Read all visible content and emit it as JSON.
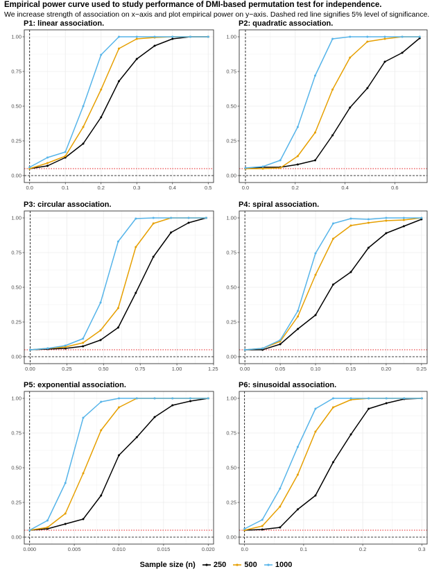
{
  "header": {
    "title": "Empirical power curve used to study performance of DMI-based permutation test for independence.",
    "subtitle": "We increase strength of association on x−axis and plot empirical power on y−axis. Dashed red line signifies 5% level of significance."
  },
  "legend": {
    "title": "Sample size (n)",
    "placement": "bottom",
    "items": [
      {
        "label": "250",
        "color": "#000000"
      },
      {
        "label": "500",
        "color": "#E69F00"
      },
      {
        "label": "1000",
        "color": "#56B4E9"
      }
    ]
  },
  "colors": {
    "significance_line": "#e41a1c",
    "zero_line": "#000000",
    "panel_border": "#333333",
    "grid": "#ebebeb"
  },
  "chart_data": [
    {
      "type": "line",
      "title": "P1: linear association.",
      "xlim": [
        -0.015,
        0.515
      ],
      "ylim": [
        -0.05,
        1.05
      ],
      "x_ticks": [
        0,
        0.1,
        0.2,
        0.3,
        0.4,
        0.5
      ],
      "x_tick_labels": [
        "0.0",
        "0.1",
        "0.2",
        "0.3",
        "0.4",
        "0.5"
      ],
      "y_ticks": [
        0,
        0.25,
        0.5,
        0.75,
        1
      ],
      "y_tick_labels": [
        "0.00",
        "0.25",
        "0.50",
        "0.75",
        "1.00"
      ],
      "reference_lines": {
        "vertical_x": 0,
        "horizontal_y": 0,
        "significance_y": 0.05
      },
      "x": [
        0,
        0.05,
        0.1,
        0.15,
        0.2,
        0.25,
        0.3,
        0.35,
        0.4,
        0.45,
        0.5
      ],
      "series": [
        {
          "name": "250",
          "values": [
            0.05,
            0.07,
            0.13,
            0.23,
            0.42,
            0.68,
            0.84,
            0.935,
            0.985,
            1.0,
            1.0
          ]
        },
        {
          "name": "500",
          "values": [
            0.05,
            0.09,
            0.14,
            0.35,
            0.62,
            0.915,
            0.985,
            0.995,
            1.0,
            1.0,
            1.0
          ]
        },
        {
          "name": "1000",
          "values": [
            0.06,
            0.13,
            0.17,
            0.5,
            0.87,
            1.0,
            1.0,
            1.0,
            1.0,
            1.0,
            1.0
          ]
        }
      ]
    },
    {
      "type": "line",
      "title": "P2: quadratic association.",
      "xlim": [
        -0.025,
        0.73
      ],
      "ylim": [
        -0.05,
        1.05
      ],
      "x_ticks": [
        0,
        0.2,
        0.4,
        0.6
      ],
      "x_tick_labels": [
        "0.0",
        "0.2",
        "0.4",
        "0.6"
      ],
      "y_ticks": [
        0,
        0.25,
        0.5,
        0.75,
        1
      ],
      "y_tick_labels": [
        "0.00",
        "0.25",
        "0.50",
        "0.75",
        "1.00"
      ],
      "reference_lines": {
        "vertical_x": 0,
        "horizontal_y": 0,
        "significance_y": 0.05
      },
      "x": [
        0,
        0.07,
        0.14,
        0.21,
        0.28,
        0.35,
        0.42,
        0.49,
        0.56,
        0.63,
        0.7
      ],
      "series": [
        {
          "name": "250",
          "values": [
            0.05,
            0.06,
            0.06,
            0.08,
            0.11,
            0.29,
            0.49,
            0.63,
            0.82,
            0.885,
            0.99
          ]
        },
        {
          "name": "500",
          "values": [
            0.05,
            0.05,
            0.055,
            0.14,
            0.31,
            0.62,
            0.85,
            0.965,
            0.985,
            1.0,
            1.0
          ]
        },
        {
          "name": "1000",
          "values": [
            0.055,
            0.065,
            0.11,
            0.35,
            0.72,
            0.985,
            1.0,
            1.0,
            1.0,
            1.0,
            1.0
          ]
        }
      ]
    },
    {
      "type": "line",
      "title": "P3: circular association.",
      "xlim": [
        -0.04,
        1.25
      ],
      "ylim": [
        -0.05,
        1.05
      ],
      "x_ticks": [
        0,
        0.25,
        0.5,
        0.75,
        1,
        1.25
      ],
      "x_tick_labels": [
        "0.00",
        "0.25",
        "0.50",
        "0.75",
        "1.00",
        "1.25"
      ],
      "y_ticks": [
        0,
        0.25,
        0.5,
        0.75,
        1
      ],
      "y_tick_labels": [
        "0.00",
        "0.25",
        "0.50",
        "0.75",
        "1.00"
      ],
      "reference_lines": {
        "vertical_x": 0,
        "horizontal_y": 0,
        "significance_y": 0.05
      },
      "x": [
        0,
        0.12,
        0.24,
        0.36,
        0.48,
        0.6,
        0.72,
        0.84,
        0.96,
        1.08,
        1.2
      ],
      "series": [
        {
          "name": "250",
          "values": [
            0.05,
            0.055,
            0.06,
            0.075,
            0.12,
            0.21,
            0.46,
            0.72,
            0.895,
            0.965,
            1.0
          ]
        },
        {
          "name": "500",
          "values": [
            0.05,
            0.06,
            0.07,
            0.1,
            0.19,
            0.35,
            0.79,
            0.96,
            1.0,
            1.0,
            1.0
          ]
        },
        {
          "name": "1000",
          "values": [
            0.05,
            0.06,
            0.08,
            0.13,
            0.39,
            0.83,
            0.995,
            1.0,
            1.0,
            1.0,
            1.0
          ]
        }
      ]
    },
    {
      "type": "line",
      "title": "P4: spiral association.",
      "xlim": [
        -0.008,
        0.258
      ],
      "ylim": [
        -0.05,
        1.05
      ],
      "x_ticks": [
        0,
        0.05,
        0.1,
        0.15,
        0.2,
        0.25
      ],
      "x_tick_labels": [
        "0.00",
        "0.05",
        "0.10",
        "0.15",
        "0.20",
        "0.25"
      ],
      "y_ticks": [
        0,
        0.25,
        0.5,
        0.75,
        1
      ],
      "y_tick_labels": [
        "0.00",
        "0.25",
        "0.50",
        "0.75",
        "1.00"
      ],
      "reference_lines": {
        "vertical_x": 0,
        "horizontal_y": 0,
        "significance_y": 0.05
      },
      "x": [
        0,
        0.025,
        0.05,
        0.075,
        0.1,
        0.125,
        0.15,
        0.175,
        0.2,
        0.225,
        0.25
      ],
      "series": [
        {
          "name": "250",
          "values": [
            0.05,
            0.05,
            0.09,
            0.2,
            0.3,
            0.52,
            0.61,
            0.785,
            0.89,
            0.94,
            0.99
          ]
        },
        {
          "name": "500",
          "values": [
            0.05,
            0.06,
            0.11,
            0.29,
            0.59,
            0.85,
            0.945,
            0.965,
            0.98,
            0.985,
            1.0
          ]
        },
        {
          "name": "1000",
          "values": [
            0.05,
            0.06,
            0.12,
            0.33,
            0.745,
            0.96,
            0.995,
            0.99,
            1.0,
            1.0,
            1.0
          ]
        }
      ]
    },
    {
      "type": "line",
      "title": "P5: exponential association.",
      "xlim": [
        -0.0006,
        0.0206
      ],
      "ylim": [
        -0.05,
        1.05
      ],
      "x_ticks": [
        0,
        0.005,
        0.01,
        0.015,
        0.02
      ],
      "x_tick_labels": [
        "0.000",
        "0.005",
        "0.010",
        "0.015",
        "0.020"
      ],
      "y_ticks": [
        0,
        0.25,
        0.5,
        0.75,
        1
      ],
      "y_tick_labels": [
        "0.00",
        "0.25",
        "0.50",
        "0.75",
        "1.00"
      ],
      "reference_lines": {
        "vertical_x": 0,
        "horizontal_y": 0,
        "significance_y": 0.05
      },
      "x": [
        0,
        0.002,
        0.004,
        0.006,
        0.008,
        0.01,
        0.012,
        0.014,
        0.016,
        0.018,
        0.02
      ],
      "series": [
        {
          "name": "250",
          "values": [
            0.05,
            0.06,
            0.095,
            0.13,
            0.3,
            0.59,
            0.72,
            0.865,
            0.95,
            0.98,
            1.0
          ]
        },
        {
          "name": "500",
          "values": [
            0.05,
            0.07,
            0.17,
            0.46,
            0.77,
            0.935,
            1.0,
            1.0,
            1.0,
            1.0,
            1.0
          ]
        },
        {
          "name": "1000",
          "values": [
            0.05,
            0.12,
            0.39,
            0.86,
            0.975,
            1.0,
            1.0,
            1.0,
            1.0,
            1.0,
            1.0
          ]
        }
      ]
    },
    {
      "type": "line",
      "title": "P6: sinusoidal association.",
      "xlim": [
        -0.009,
        0.309
      ],
      "ylim": [
        -0.05,
        1.05
      ],
      "x_ticks": [
        0,
        0.1,
        0.2,
        0.3
      ],
      "x_tick_labels": [
        "0.0",
        "0.1",
        "0.2",
        "0.3"
      ],
      "y_ticks": [
        0,
        0.25,
        0.5,
        0.75,
        1
      ],
      "y_tick_labels": [
        "0.00",
        "0.25",
        "0.50",
        "0.75",
        "1.00"
      ],
      "reference_lines": {
        "vertical_x": 0,
        "horizontal_y": 0,
        "significance_y": 0.05
      },
      "x": [
        0,
        0.03,
        0.06,
        0.09,
        0.12,
        0.15,
        0.18,
        0.21,
        0.24,
        0.27,
        0.3
      ],
      "series": [
        {
          "name": "250",
          "values": [
            0.05,
            0.055,
            0.07,
            0.2,
            0.3,
            0.54,
            0.74,
            0.925,
            0.965,
            0.995,
            1.0
          ]
        },
        {
          "name": "500",
          "values": [
            0.05,
            0.08,
            0.22,
            0.45,
            0.76,
            0.935,
            0.99,
            1.0,
            1.0,
            1.0,
            1.0
          ]
        },
        {
          "name": "1000",
          "values": [
            0.06,
            0.125,
            0.35,
            0.65,
            0.925,
            1.0,
            1.0,
            1.0,
            1.0,
            1.0,
            1.0
          ]
        }
      ]
    }
  ]
}
